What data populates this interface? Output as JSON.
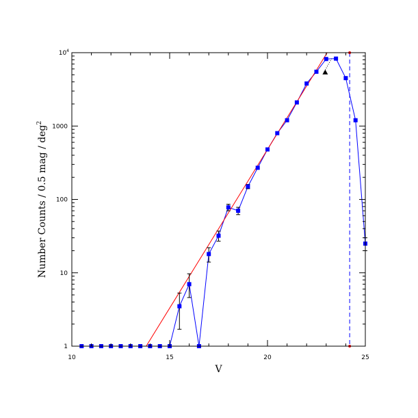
{
  "chart_data": {
    "type": "line",
    "xlabel": "V",
    "ylabel": "Number Counts / 0.5 mag / deg",
    "ylabel_superscript": "2",
    "xlim": [
      10,
      25
    ],
    "ylim": [
      1,
      10000
    ],
    "yscale": "log",
    "grid": false,
    "legend": "none",
    "x_ticks": [
      {
        "value": 10,
        "label": "10"
      },
      {
        "value": 15,
        "label": "15"
      },
      {
        "value": 20,
        "label": "20"
      },
      {
        "value": 25,
        "label": "25"
      }
    ],
    "y_ticks": [
      {
        "value": 1,
        "label": "1",
        "sup": ""
      },
      {
        "value": 10,
        "label": "10",
        "sup": ""
      },
      {
        "value": 100,
        "label": "100",
        "sup": ""
      },
      {
        "value": 1000,
        "label": "1000",
        "sup": ""
      },
      {
        "value": 10000,
        "label": "10",
        "sup": "4"
      }
    ],
    "series": [
      {
        "color": "#0000ff",
        "style": "line-with-square-markers-and-error-bars",
        "points": [
          {
            "x": 10.5,
            "y": 1
          },
          {
            "x": 11.0,
            "y": 1
          },
          {
            "x": 11.5,
            "y": 1
          },
          {
            "x": 12.0,
            "y": 1
          },
          {
            "x": 12.5,
            "y": 1
          },
          {
            "x": 13.0,
            "y": 1
          },
          {
            "x": 13.5,
            "y": 1
          },
          {
            "x": 14.0,
            "y": 1
          },
          {
            "x": 14.5,
            "y": 1
          },
          {
            "x": 15.0,
            "y": 1
          },
          {
            "x": 15.5,
            "y": 3.5,
            "err_lo": 1.7,
            "err_hi": 5.3
          },
          {
            "x": 16.0,
            "y": 7.0,
            "err_lo": 4.6,
            "err_hi": 9.7
          },
          {
            "x": 16.5,
            "y": 1
          },
          {
            "x": 17.0,
            "y": 18,
            "err_lo": 14,
            "err_hi": 22
          },
          {
            "x": 17.5,
            "y": 32,
            "err_lo": 27,
            "err_hi": 37
          },
          {
            "x": 18.0,
            "y": 78,
            "err_lo": 70,
            "err_hi": 86
          },
          {
            "x": 18.5,
            "y": 70,
            "err_lo": 62,
            "err_hi": 78
          },
          {
            "x": 19.0,
            "y": 150,
            "err_lo": 140,
            "err_hi": 160
          },
          {
            "x": 19.5,
            "y": 270
          },
          {
            "x": 20.0,
            "y": 480
          },
          {
            "x": 20.5,
            "y": 800
          },
          {
            "x": 21.0,
            "y": 1200
          },
          {
            "x": 21.5,
            "y": 2100
          },
          {
            "x": 22.0,
            "y": 3800
          },
          {
            "x": 22.5,
            "y": 5500
          },
          {
            "x": 23.0,
            "y": 8200
          },
          {
            "x": 23.5,
            "y": 8300
          },
          {
            "x": 24.0,
            "y": 4500
          },
          {
            "x": 24.5,
            "y": 1200
          },
          {
            "x": 25.0,
            "y": 25,
            "err_lo": 20,
            "err_hi": 30
          }
        ]
      },
      {
        "color": "#ff0000",
        "style": "line",
        "points": [
          {
            "x": 13.8,
            "y": 1
          },
          {
            "x": 23.05,
            "y": 10000
          }
        ]
      },
      {
        "color": "#000000",
        "style": "dotted",
        "points": [
          {
            "x": 22.9,
            "y": 5500
          },
          {
            "x": 23.3,
            "y": 8500
          }
        ]
      }
    ],
    "annotations": [
      {
        "type": "triangle-marker",
        "x": 22.95,
        "y": 5400,
        "color": "#000000"
      },
      {
        "type": "vertical-dashed-line",
        "x": 24.2,
        "color": "#0000ff"
      },
      {
        "type": "limit-marker",
        "x": 24.2,
        "y": 10000,
        "color": "#ff0000"
      },
      {
        "type": "limit-marker",
        "x": 24.2,
        "y": 1,
        "color": "#ff0000"
      }
    ]
  }
}
